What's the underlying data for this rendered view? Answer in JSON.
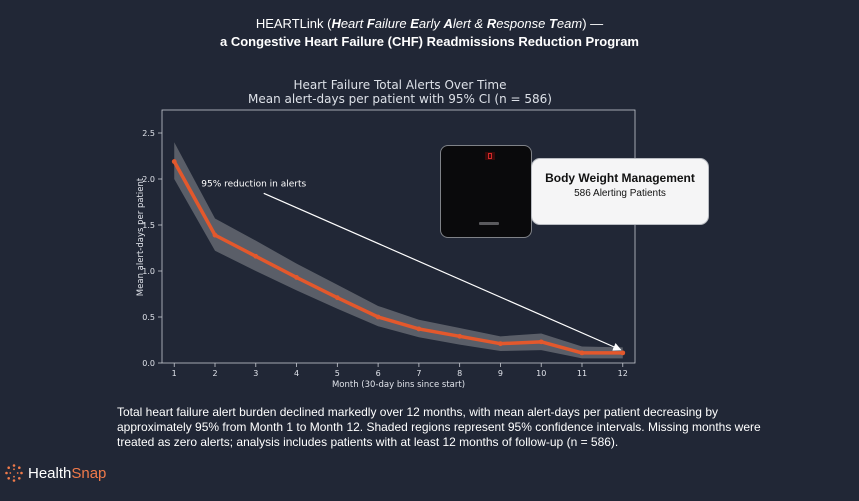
{
  "header": {
    "line1": {
      "prefix": "HEARTLink (",
      "h": "H",
      "h_rest": "eart ",
      "f": "F",
      "f_rest": "ailure ",
      "e": "E",
      "e_rest": "arly ",
      "a": "A",
      "a_rest": "lert & ",
      "r": "R",
      "r_rest": "esponse ",
      "t": "T",
      "t_rest": "eam",
      "suffix": ") —"
    },
    "line2": "a Congestive Heart Failure (CHF) Readmissions Reduction Program"
  },
  "callout": {
    "heading": "Body Weight Management",
    "subtext": "586 Alerting Patients"
  },
  "caption": "Total heart failure alert burden declined markedly over 12 months, with mean alert-days per patient decreasing by approximately 95% from Month 1 to Month 12. Shaded regions represent 95% confidence intervals. Missing months were treated as zero alerts; analysis includes patients with at least 12 months of follow-up (n = 586).",
  "logo": {
    "part1": "Health",
    "part2": "Snap"
  },
  "colors": {
    "background": "#212736",
    "line": "#e3582c",
    "ci_band": "#6e717a",
    "axis": "#c5c8d0",
    "logo_accent": "#f07a4a"
  },
  "chart_data": {
    "type": "line",
    "title": "Heart Failure Total Alerts Over Time",
    "subtitle": "Mean alert-days per patient with 95% CI (n = 586)",
    "xlabel": "Month (30-day bins since start)",
    "ylabel": "Mean alert-days per patient",
    "x": [
      1,
      2,
      3,
      4,
      5,
      6,
      7,
      8,
      9,
      10,
      11,
      12
    ],
    "values": [
      2.19,
      1.39,
      1.16,
      0.93,
      0.71,
      0.5,
      0.37,
      0.29,
      0.21,
      0.23,
      0.11,
      0.11
    ],
    "ci_lower": [
      2.0,
      1.22,
      1.0,
      0.79,
      0.59,
      0.4,
      0.28,
      0.2,
      0.13,
      0.14,
      0.05,
      0.05
    ],
    "ci_upper": [
      2.4,
      1.57,
      1.33,
      1.08,
      0.85,
      0.62,
      0.47,
      0.38,
      0.29,
      0.32,
      0.18,
      0.17
    ],
    "xlim": [
      0.7,
      12.3
    ],
    "ylim": [
      0,
      2.75
    ],
    "yticks": [
      0.0,
      0.5,
      1.0,
      1.5,
      2.0,
      2.5
    ],
    "ytick_labels": [
      "0.0",
      "0.5",
      "1.0",
      "1.5",
      "2.0",
      "2.5"
    ],
    "xtick_labels": [
      "1",
      "2",
      "3",
      "4",
      "5",
      "6",
      "7",
      "8",
      "9",
      "10",
      "11",
      "12"
    ],
    "annotation": {
      "text": "95% reduction in alerts",
      "text_x": 2.95,
      "text_y": 1.92,
      "target_x": 12,
      "target_y": 0.11
    },
    "grid": false
  }
}
